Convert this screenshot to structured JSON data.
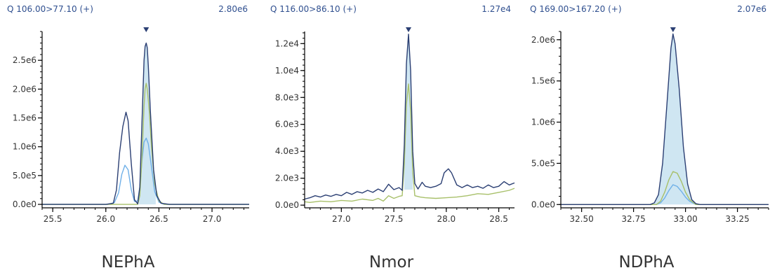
{
  "colors": {
    "trace_main": "#2b3f73",
    "trace_green": "#a8c06a",
    "trace_blue": "#6fb0e8",
    "fill": "#cfe6f2",
    "axis": "#000000",
    "header_text": "#2f4f8f"
  },
  "chart_data": [
    {
      "type": "line",
      "title": "NEPhA",
      "transition": "Q 106.00>77.10 (+)",
      "max_intensity": "2.80e6",
      "xlim": [
        25.4,
        27.35
      ],
      "ylim": [
        -60000,
        3000000
      ],
      "x_ticks": [
        25.5,
        26.0,
        26.5,
        27.0
      ],
      "x_tick_labels": [
        "25.5",
        "26.0",
        "26.5",
        "27.0"
      ],
      "y_ticks": [
        0,
        500000,
        1000000,
        1500000,
        2000000,
        2500000
      ],
      "y_tick_labels": [
        "0.0e0",
        "5.0e5",
        "1.0e6",
        "1.5e6",
        "2.0e6",
        "2.5e6"
      ],
      "peak_apex_rt": 26.38,
      "fill_range": [
        26.31,
        26.47
      ],
      "fill_series": 0,
      "series": [
        {
          "color_key": "trace_main",
          "x": [
            25.4,
            26.0,
            26.07,
            26.1,
            26.13,
            26.16,
            26.19,
            26.21,
            26.24,
            26.27,
            26.3,
            26.32,
            26.34,
            26.36,
            26.37,
            26.38,
            26.39,
            26.4,
            26.42,
            26.45,
            26.48,
            26.52,
            26.6,
            27.35
          ],
          "y": [
            0,
            0,
            20000,
            250000,
            900000,
            1350000,
            1600000,
            1450000,
            700000,
            80000,
            10000,
            300000,
            1400000,
            2500000,
            2740000,
            2800000,
            2720000,
            2400000,
            1600000,
            600000,
            150000,
            20000,
            0,
            0
          ]
        },
        {
          "color_key": "trace_green",
          "x": [
            25.4,
            26.3,
            26.32,
            26.34,
            26.36,
            26.37,
            26.38,
            26.39,
            26.41,
            26.43,
            26.46,
            26.5,
            26.55,
            27.35
          ],
          "y": [
            0,
            0,
            150000,
            800000,
            1700000,
            2000000,
            2100000,
            2000000,
            1600000,
            1000000,
            350000,
            60000,
            0,
            0
          ]
        },
        {
          "color_key": "trace_blue",
          "x": [
            25.4,
            26.02,
            26.08,
            26.12,
            26.15,
            26.18,
            26.21,
            26.24,
            26.27,
            26.3,
            26.32,
            26.34,
            26.36,
            26.38,
            26.4,
            26.43,
            26.46,
            26.5,
            26.55,
            27.35
          ],
          "y": [
            0,
            0,
            30000,
            200000,
            520000,
            680000,
            600000,
            250000,
            50000,
            60000,
            300000,
            750000,
            1080000,
            1150000,
            1050000,
            650000,
            220000,
            40000,
            0,
            0
          ]
        }
      ]
    },
    {
      "type": "line",
      "title": "Nmor",
      "transition": "Q 116.00>86.10 (+)",
      "max_intensity": "1.27e4",
      "xlim": [
        26.65,
        28.65
      ],
      "ylim": [
        -200,
        12900
      ],
      "x_ticks": [
        27.0,
        27.5,
        28.0,
        28.5
      ],
      "x_tick_labels": [
        "27.0",
        "27.5",
        "28.0",
        "28.5"
      ],
      "y_ticks": [
        0,
        2000,
        4000,
        6000,
        8000,
        10000,
        12000
      ],
      "y_tick_labels": [
        "0.0e0",
        "2.0e3",
        "4.0e3",
        "6.0e3",
        "8.0e3",
        "1.0e4",
        "1.2e4"
      ],
      "peak_apex_rt": 27.64,
      "fill_range": [
        27.6,
        27.68
      ],
      "fill_series": 0,
      "fill_baseline": 1150,
      "series": [
        {
          "color_key": "trace_main",
          "x": [
            26.65,
            26.7,
            26.75,
            26.8,
            26.85,
            26.9,
            26.95,
            27.0,
            27.05,
            27.1,
            27.15,
            27.2,
            27.25,
            27.3,
            27.35,
            27.4,
            27.45,
            27.5,
            27.55,
            27.58,
            27.6,
            27.62,
            27.64,
            27.66,
            27.68,
            27.7,
            27.73,
            27.77,
            27.8,
            27.85,
            27.9,
            27.95,
            27.98,
            28.02,
            28.05,
            28.1,
            28.15,
            28.2,
            28.25,
            28.3,
            28.35,
            28.4,
            28.45,
            28.5,
            28.55,
            28.6,
            28.65
          ],
          "y": [
            450,
            550,
            700,
            600,
            750,
            650,
            800,
            700,
            950,
            800,
            1000,
            900,
            1100,
            950,
            1200,
            1000,
            1550,
            1150,
            1300,
            1100,
            4500,
            10500,
            12700,
            10000,
            4000,
            1600,
            1200,
            1700,
            1400,
            1300,
            1400,
            1600,
            2400,
            2700,
            2400,
            1500,
            1300,
            1500,
            1300,
            1400,
            1250,
            1500,
            1300,
            1400,
            1750,
            1500,
            1650
          ]
        },
        {
          "color_key": "trace_green",
          "x": [
            26.65,
            26.7,
            26.8,
            26.9,
            27.0,
            27.1,
            27.2,
            27.3,
            27.35,
            27.4,
            27.45,
            27.5,
            27.55,
            27.58,
            27.6,
            27.62,
            27.64,
            27.66,
            27.68,
            27.7,
            27.75,
            27.8,
            27.9,
            28.0,
            28.1,
            28.2,
            28.3,
            28.4,
            28.5,
            28.6,
            28.65
          ],
          "y": [
            250,
            200,
            300,
            250,
            350,
            300,
            450,
            350,
            500,
            300,
            700,
            500,
            650,
            700,
            3000,
            7500,
            9000,
            7000,
            2500,
            700,
            600,
            550,
            500,
            550,
            600,
            700,
            850,
            800,
            950,
            1100,
            1250
          ]
        }
      ]
    },
    {
      "type": "line",
      "title": "NDPhA",
      "transition": "Q 169.00>167.20 (+)",
      "max_intensity": "2.07e6",
      "xlim": [
        32.4,
        33.4
      ],
      "ylim": [
        -40000,
        2100000
      ],
      "x_ticks": [
        32.5,
        32.75,
        33.0,
        33.25
      ],
      "x_tick_labels": [
        "32.50",
        "32.75",
        "33.00",
        "33.25"
      ],
      "y_ticks": [
        0,
        500000,
        1000000,
        1500000,
        2000000
      ],
      "y_tick_labels": [
        "0.0e0",
        "5.0e5",
        "1.0e6",
        "1.5e6",
        "2.0e6"
      ],
      "peak_apex_rt": 32.94,
      "fill_range": [
        32.85,
        33.06
      ],
      "fill_series": 0,
      "series": [
        {
          "color_key": "trace_main",
          "x": [
            32.4,
            32.83,
            32.85,
            32.87,
            32.89,
            32.91,
            32.93,
            32.94,
            32.95,
            32.97,
            32.99,
            33.01,
            33.03,
            33.05,
            33.07,
            33.4
          ],
          "y": [
            0,
            0,
            20000,
            120000,
            500000,
            1200000,
            1900000,
            2070000,
            1950000,
            1400000,
            700000,
            250000,
            60000,
            10000,
            0,
            0
          ]
        },
        {
          "color_key": "trace_green",
          "x": [
            32.4,
            32.86,
            32.88,
            32.9,
            32.92,
            32.94,
            32.96,
            32.98,
            33.0,
            33.02,
            33.05,
            33.4
          ],
          "y": [
            0,
            0,
            40000,
            150000,
            300000,
            400000,
            380000,
            280000,
            150000,
            60000,
            0,
            0
          ]
        },
        {
          "color_key": "trace_blue",
          "x": [
            32.4,
            32.86,
            32.88,
            32.9,
            32.92,
            32.94,
            32.96,
            32.98,
            33.0,
            33.02,
            33.05,
            33.4
          ],
          "y": [
            0,
            0,
            20000,
            80000,
            170000,
            240000,
            220000,
            160000,
            90000,
            40000,
            0,
            0
          ]
        }
      ]
    }
  ]
}
